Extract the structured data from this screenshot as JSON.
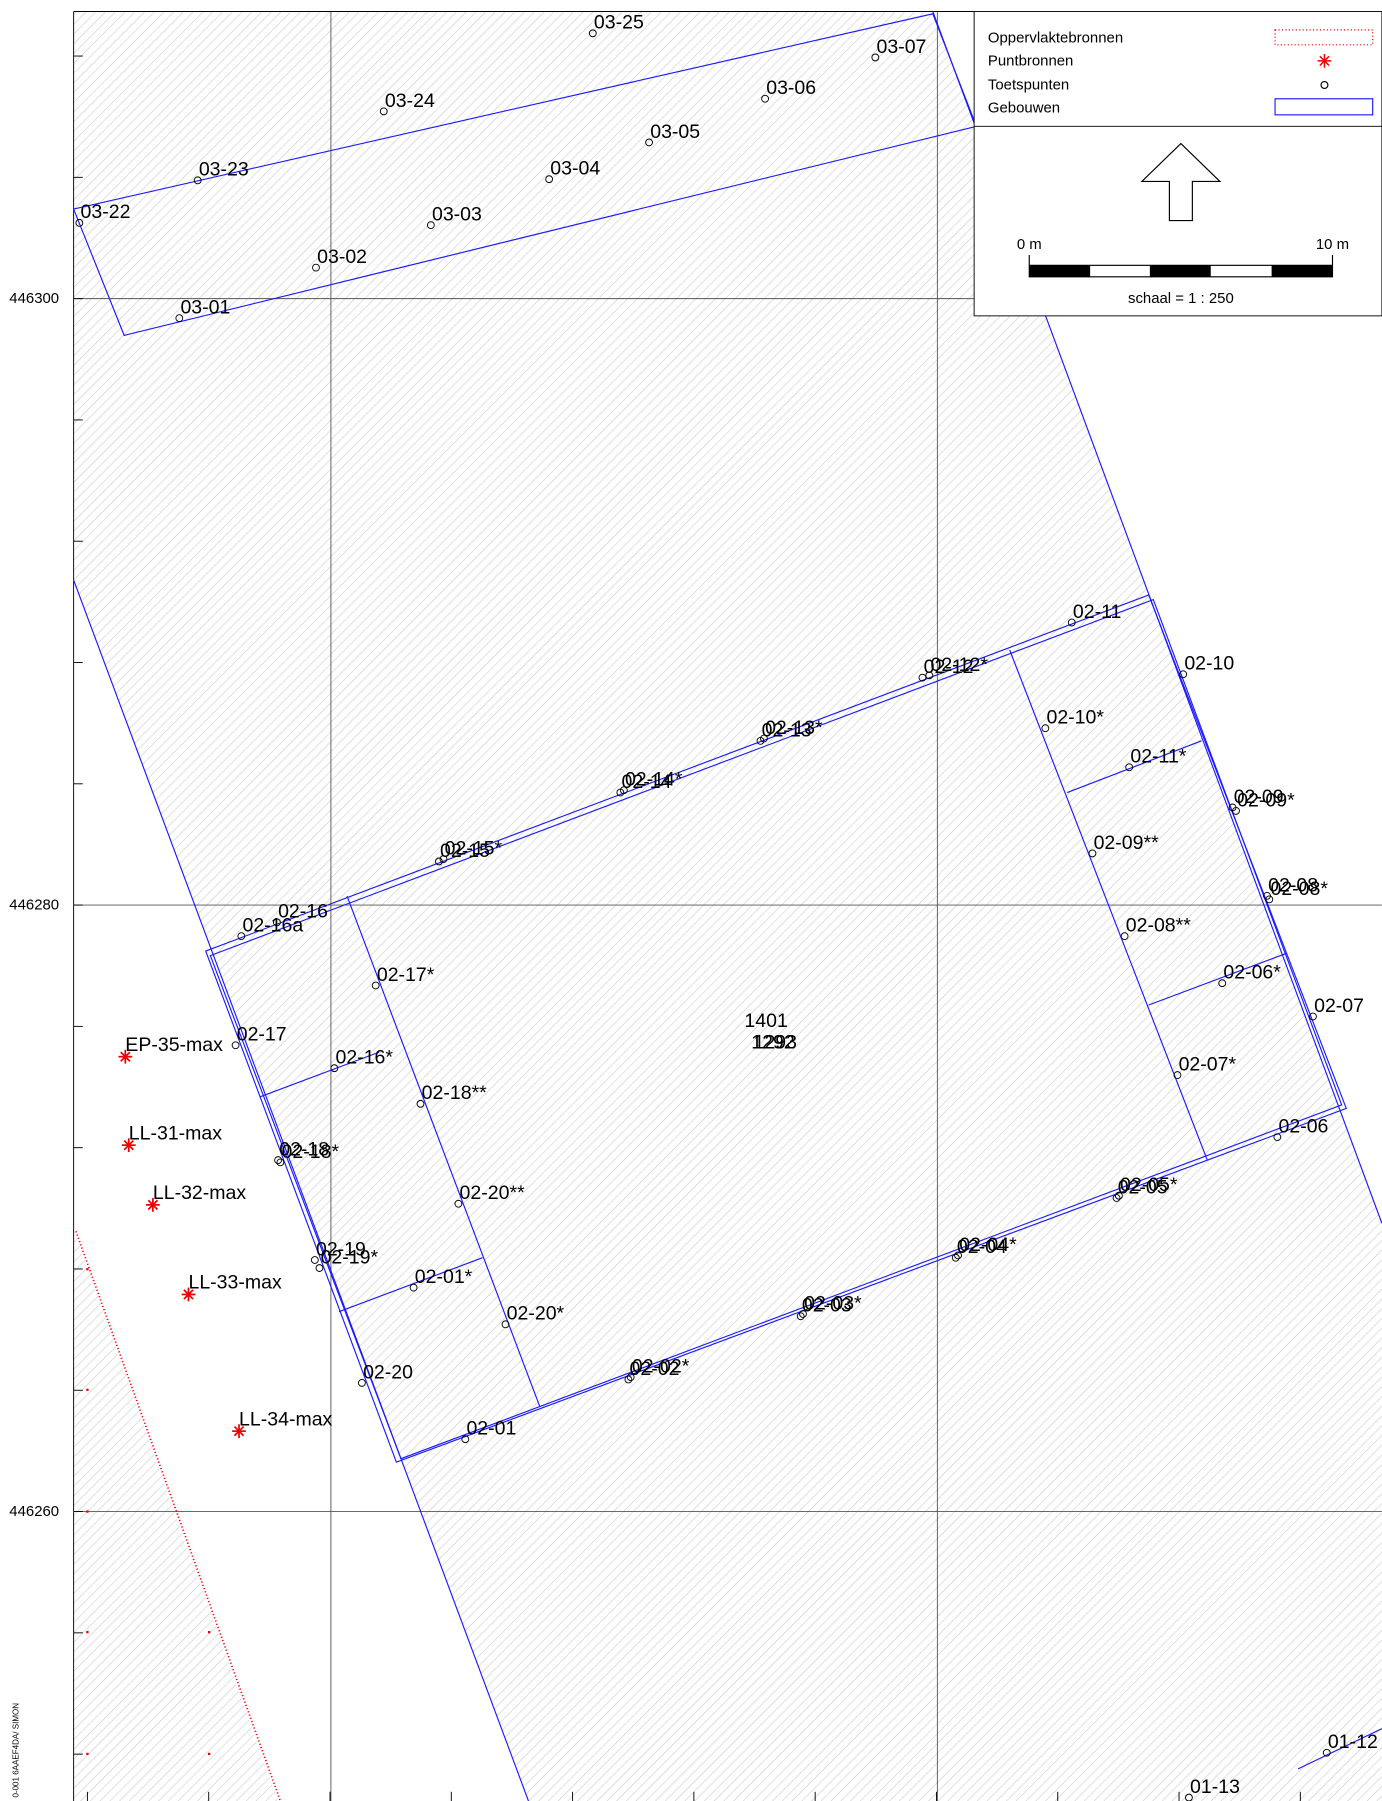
{
  "legend": {
    "items": [
      "Oppervlaktebronnen",
      "Puntbronnen",
      "Toetspunten",
      "Gebouwen"
    ],
    "scale": {
      "start": "0 m",
      "end": "10 m",
      "ratio": "schaal = 1 : 250"
    }
  },
  "axis": {
    "y_labels": [
      "446300",
      "446280",
      "446260"
    ]
  },
  "buildings": {
    "labels": [
      "1401",
      "1292",
      "1293"
    ]
  },
  "points": {
    "labels": [
      "03-25",
      "03-07",
      "03-24",
      "03-06",
      "03-23",
      "03-05",
      "03-04",
      "03-22",
      "03-03",
      "03-02",
      "03-01",
      "02-11",
      "02-10",
      "02-12",
      "02-12*",
      "02-10*",
      "02-13",
      "02-13*",
      "02-11*",
      "02-09",
      "02-09*",
      "02-14",
      "02-14*",
      "02-15",
      "02-15*",
      "02-09**",
      "02-08",
      "02-08*",
      "02-16",
      "02-16a",
      "02-08**",
      "02-17*",
      "02-06*",
      "02-07",
      "02-17",
      "02-16*",
      "02-07*",
      "02-18**",
      "02-06",
      "02-18",
      "02-18*",
      "02-05",
      "02-05*",
      "02-20**",
      "02-04",
      "02-04*",
      "02-19",
      "02-19*",
      "02-01*",
      "02-03",
      "02-03*",
      "02-20*",
      "02-02",
      "02-02*",
      "02-20",
      "02-01",
      "01-12",
      "01-13"
    ]
  },
  "sources": {
    "labels": [
      "EP-35-max",
      "LL-31-max",
      "LL-32-max",
      "LL-33-max",
      "LL-34-max"
    ]
  },
  "footer": "0-001 6AAEF4DA/ SIMON"
}
